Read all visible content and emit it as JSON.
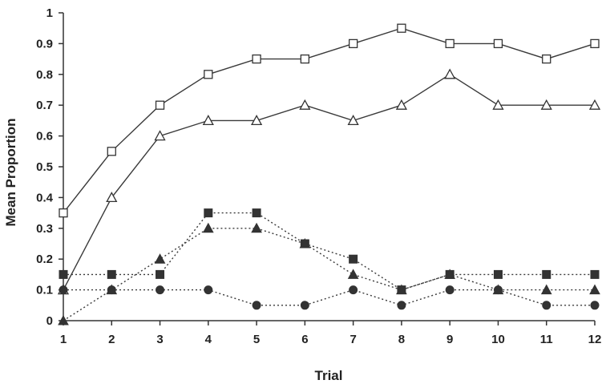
{
  "chart_data": {
    "type": "line",
    "title": "",
    "xlabel": "Trial",
    "ylabel": "Mean Proportion",
    "x": [
      1,
      2,
      3,
      4,
      5,
      6,
      7,
      8,
      9,
      10,
      11,
      12
    ],
    "xlim": [
      1,
      12
    ],
    "ylim": [
      0,
      1
    ],
    "yticks": [
      "0",
      "0.1",
      "0.2",
      "0.3",
      "0.4",
      "0.5",
      "0.6",
      "0.7",
      "0.8",
      "0.9",
      "1"
    ],
    "xticks": [
      "1",
      "2",
      "3",
      "4",
      "5",
      "6",
      "7",
      "8",
      "9",
      "10",
      "11",
      "12"
    ],
    "grid": false,
    "legend": "none",
    "series": [
      {
        "marker": "open-square",
        "line": "solid",
        "values": [
          0.35,
          0.55,
          0.7,
          0.8,
          0.85,
          0.85,
          0.9,
          0.95,
          0.9,
          0.9,
          0.85,
          0.9
        ]
      },
      {
        "marker": "open-triangle",
        "line": "solid",
        "values": [
          0.1,
          0.4,
          0.6,
          0.65,
          0.65,
          0.7,
          0.65,
          0.7,
          0.8,
          0.7,
          0.7,
          0.7
        ]
      },
      {
        "marker": "filled-square",
        "line": "dotted",
        "values": [
          0.15,
          0.15,
          0.15,
          0.35,
          0.35,
          0.25,
          0.2,
          0.1,
          0.15,
          0.15,
          0.15,
          0.15
        ]
      },
      {
        "marker": "filled-triangle",
        "line": "dotted",
        "values": [
          0.0,
          0.1,
          0.2,
          0.3,
          0.3,
          0.25,
          0.15,
          0.1,
          0.15,
          0.1,
          0.1,
          0.1
        ]
      },
      {
        "marker": "filled-circle",
        "line": "dotted",
        "values": [
          0.1,
          0.1,
          0.1,
          0.1,
          0.05,
          0.05,
          0.1,
          0.05,
          0.1,
          0.1,
          0.05,
          0.05
        ]
      }
    ]
  }
}
